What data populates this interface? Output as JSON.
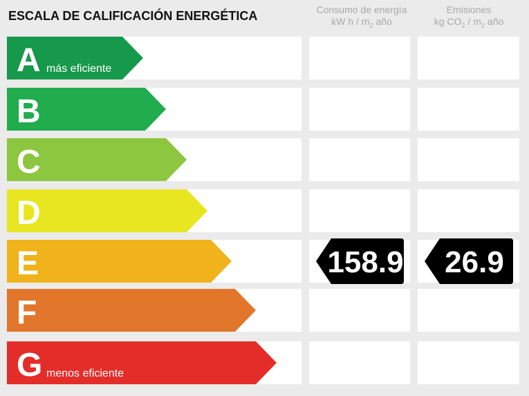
{
  "title": "ESCALA DE CALIFICACIÓN ENERGÉTICA",
  "columns": {
    "consumption": {
      "label": "Consumo de energía",
      "unit": [
        "kW h / m",
        "2",
        "año"
      ]
    },
    "emissions": {
      "label": "Emisiones",
      "unit": [
        "kg CO",
        "2",
        "/ m",
        "2",
        "año"
      ]
    }
  },
  "rows": [
    {
      "letter": "A",
      "note": "más eficiente",
      "color": "#17994b"
    },
    {
      "letter": "B",
      "color": "#21ac4d"
    },
    {
      "letter": "C",
      "color": "#8dc63f"
    },
    {
      "letter": "D",
      "color": "#e8e620"
    },
    {
      "letter": "E",
      "color": "#f1b31c",
      "consumption": 158.9,
      "emissions": 26.9
    },
    {
      "letter": "F",
      "color": "#e2772c"
    },
    {
      "letter": "G",
      "note": "menos eficiente",
      "color": "#e42d29"
    }
  ]
}
